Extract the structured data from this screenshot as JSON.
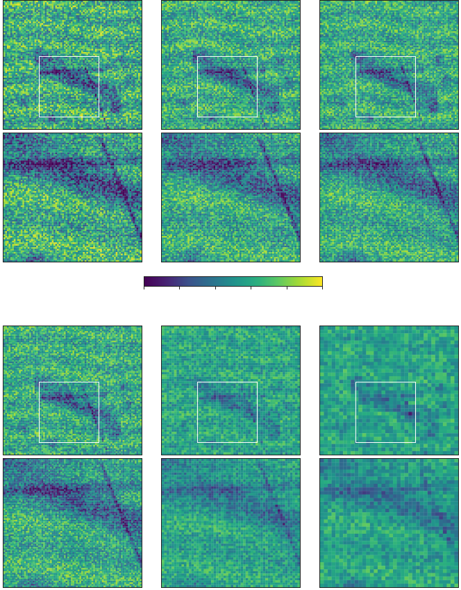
{
  "figure": {
    "colormap": "viridis",
    "colors": {
      "low": "#440154",
      "mid": "#21918c",
      "high": "#fde725",
      "roi_box": "#ffffff",
      "frame": "#222222"
    },
    "colorbar": {
      "orientation": "horizontal",
      "tick_count": 6,
      "tick_labels": []
    },
    "groups": [
      {
        "panels": [
          {
            "id": "top-full-1",
            "kind": "full",
            "has_roi_box": true,
            "texture": "fine",
            "contrast": 1.0
          },
          {
            "id": "top-full-2",
            "kind": "full",
            "has_roi_box": true,
            "texture": "fine",
            "contrast": 0.85
          },
          {
            "id": "top-full-3",
            "kind": "full",
            "has_roi_box": true,
            "texture": "fine",
            "contrast": 0.8
          },
          {
            "id": "top-zoom-1",
            "kind": "zoom",
            "has_roi_box": false,
            "texture": "fine",
            "contrast": 1.0
          },
          {
            "id": "top-zoom-2",
            "kind": "zoom",
            "has_roi_box": false,
            "texture": "fine",
            "contrast": 0.85
          },
          {
            "id": "top-zoom-3",
            "kind": "zoom",
            "has_roi_box": false,
            "texture": "fine",
            "contrast": 0.8
          }
        ]
      },
      {
        "panels": [
          {
            "id": "bottom-full-1",
            "kind": "full",
            "has_roi_box": true,
            "texture": "fine",
            "contrast": 0.8
          },
          {
            "id": "bottom-full-2",
            "kind": "full",
            "has_roi_box": true,
            "texture": "medium",
            "contrast": 0.55
          },
          {
            "id": "bottom-full-3",
            "kind": "full",
            "has_roi_box": true,
            "texture": "coarse",
            "contrast": 0.5
          },
          {
            "id": "bottom-zoom-1",
            "kind": "zoom",
            "has_roi_box": false,
            "texture": "fine",
            "contrast": 0.8
          },
          {
            "id": "bottom-zoom-2",
            "kind": "zoom",
            "has_roi_box": false,
            "texture": "medium",
            "contrast": 0.55
          },
          {
            "id": "bottom-zoom-3",
            "kind": "zoom",
            "has_roi_box": false,
            "texture": "coarse",
            "contrast": 0.5
          }
        ]
      }
    ]
  }
}
